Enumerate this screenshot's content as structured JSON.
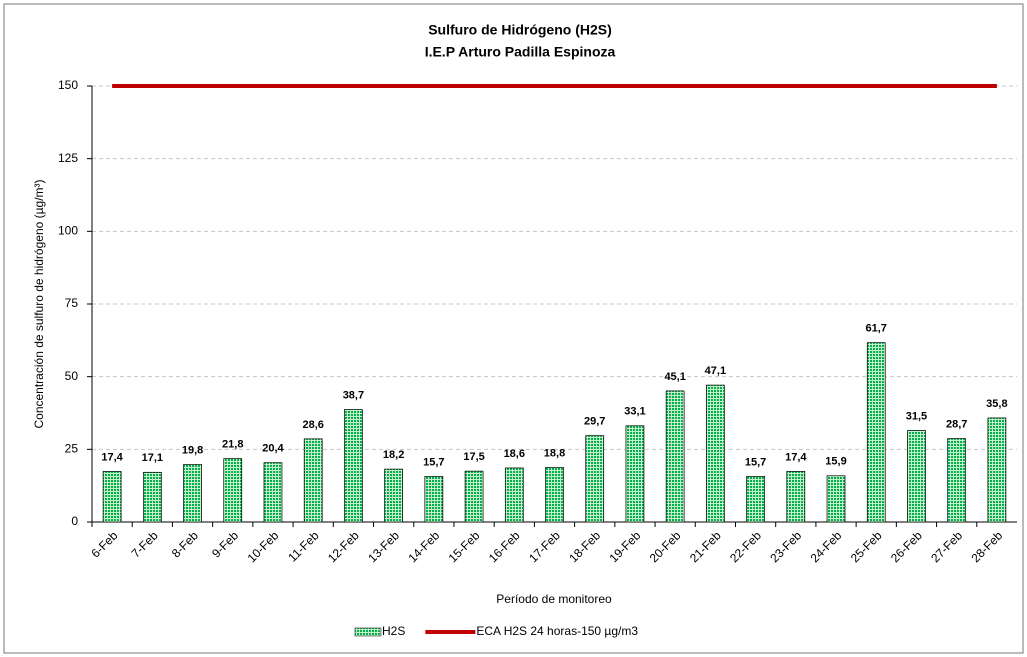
{
  "chart_data": {
    "type": "bar",
    "title": "Sulfuro de Hidrógeno (H2S)",
    "subtitle": "I.E.P Arturo Padilla Espinoza",
    "x_label": "Período de monitoreo",
    "y_label": "Concentración de sulfuro de hidrógeno (µg/m³)",
    "categories": [
      "6-Feb",
      "7-Feb",
      "8-Feb",
      "9-Feb",
      "10-Feb",
      "11-Feb",
      "12-Feb",
      "13-Feb",
      "14-Feb",
      "15-Feb",
      "16-Feb",
      "17-Feb",
      "18-Feb",
      "19-Feb",
      "20-Feb",
      "21-Feb",
      "22-Feb",
      "23-Feb",
      "24-Feb",
      "25-Feb",
      "26-Feb",
      "27-Feb",
      "28-Feb"
    ],
    "series": [
      {
        "name": "H2S",
        "type": "bar",
        "color": "#00b050",
        "values": [
          17.4,
          17.1,
          19.8,
          21.8,
          20.4,
          28.6,
          38.7,
          18.2,
          15.7,
          17.5,
          18.6,
          18.8,
          29.7,
          33.1,
          45.1,
          47.1,
          15.7,
          17.4,
          15.9,
          61.7,
          31.5,
          28.7,
          35.8
        ],
        "value_labels": [
          "17,4",
          "17,1",
          "19,8",
          "21,8",
          "20,4",
          "28,6",
          "38,7",
          "18,2",
          "15,7",
          "17,5",
          "18,6",
          "18,8",
          "29,7",
          "33,1",
          "45,1",
          "47,1",
          "15,7",
          "17,4",
          "15,9",
          "61,7",
          "31,5",
          "28,7",
          "35,8"
        ]
      },
      {
        "name": "ECA H2S 24 horas-150 µg/m3",
        "type": "line",
        "color": "#c00000",
        "values": [
          150,
          150,
          150,
          150,
          150,
          150,
          150,
          150,
          150,
          150,
          150,
          150,
          150,
          150,
          150,
          150,
          150,
          150,
          150,
          150,
          150,
          150,
          150
        ]
      }
    ],
    "ylim": [
      0,
      150
    ],
    "yticks": [
      0,
      25,
      50,
      75,
      100,
      125,
      150
    ],
    "grid": true,
    "legend": "bottom"
  }
}
